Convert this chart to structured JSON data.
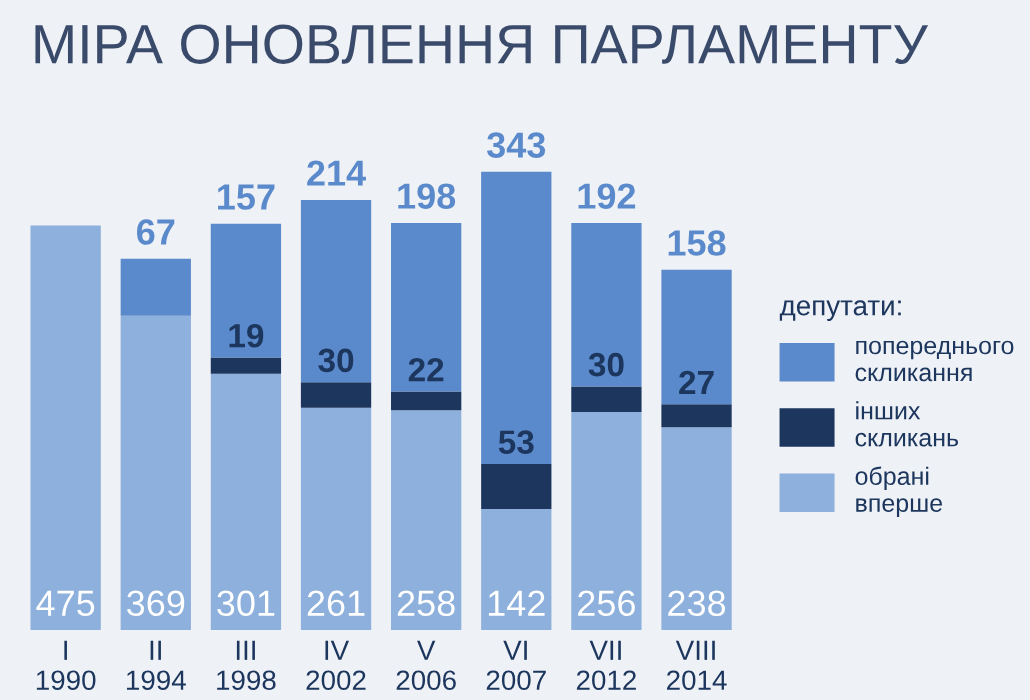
{
  "chart_data": {
    "type": "bar",
    "title": "МІРА ОНОВЛЕННЯ ПАРЛАМЕНТУ",
    "stacked": true,
    "data_labels": true,
    "legend": "right",
    "legend_title": "депутати:",
    "categories": [
      "I\n1990",
      "II\n1994",
      "III\n1998",
      "IV\n2002",
      "V\n2006",
      "VI\n2007",
      "VII\n2012",
      "VIII\n2014"
    ],
    "series": [
      {
        "name": "обрані\nвперше",
        "color": "#8eb0dc",
        "values": [
          475,
          369,
          301,
          261,
          258,
          142,
          256,
          238
        ]
      },
      {
        "name": "інших\nскликань",
        "color": "#1c365e",
        "values": [
          null,
          null,
          19,
          30,
          22,
          53,
          30,
          27
        ]
      },
      {
        "name": "попереднього\nскликання",
        "color": "#5a8acb",
        "values": [
          null,
          67,
          157,
          214,
          198,
          343,
          192,
          158
        ]
      }
    ]
  }
}
